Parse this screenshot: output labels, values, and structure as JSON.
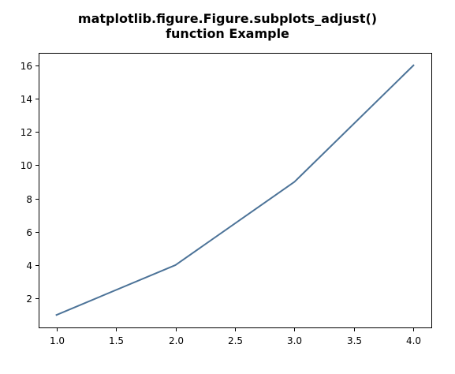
{
  "chart_data": {
    "type": "line",
    "title_lines": [
      "matplotlib.figure.Figure.subplots_adjust()",
      "function Example"
    ],
    "xlabel": "",
    "ylabel": "",
    "x": [
      1.0,
      2.0,
      3.0,
      4.0
    ],
    "series": [
      {
        "values": [
          1,
          4,
          9,
          16
        ],
        "color": "#4c7398"
      }
    ],
    "xlim": [
      0.85,
      4.15
    ],
    "ylim": [
      0.25,
      16.75
    ],
    "x_ticks": [
      1.0,
      1.5,
      2.0,
      2.5,
      3.0,
      3.5,
      4.0
    ],
    "x_tick_labels": [
      "1.0",
      "1.5",
      "2.0",
      "2.5",
      "3.0",
      "3.5",
      "4.0"
    ],
    "y_ticks": [
      2,
      4,
      6,
      8,
      10,
      12,
      14,
      16
    ],
    "y_tick_labels": [
      "2",
      "4",
      "6",
      "8",
      "10",
      "12",
      "14",
      "16"
    ],
    "grid": false,
    "legend": "none"
  }
}
